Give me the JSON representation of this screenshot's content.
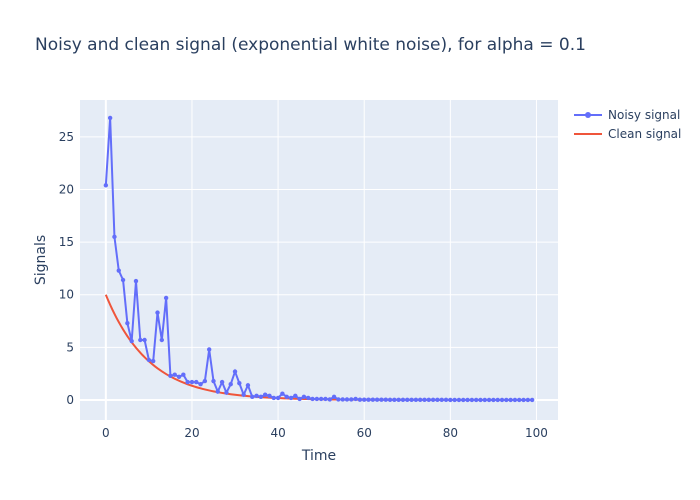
{
  "chart_data": {
    "type": "line",
    "title": "Noisy and clean signal (exponential white noise), for alpha = 0.1",
    "xlabel": "Time",
    "ylabel": "Signals",
    "xlim": [
      -6,
      105
    ],
    "ylim": [
      -1.9,
      28.5
    ],
    "xticks": [
      0,
      20,
      40,
      60,
      80,
      100
    ],
    "yticks": [
      0,
      5,
      10,
      15,
      20,
      25
    ],
    "grid": true,
    "legend_position": "top-right",
    "series": [
      {
        "name": "Noisy signal",
        "color": "#636efa",
        "mode": "lines+markers",
        "x": [
          0,
          1,
          2,
          3,
          4,
          5,
          6,
          7,
          8,
          9,
          10,
          11,
          12,
          13,
          14,
          15,
          16,
          17,
          18,
          19,
          20,
          21,
          22,
          23,
          24,
          25,
          26,
          27,
          28,
          29,
          30,
          31,
          32,
          33,
          34,
          35,
          36,
          37,
          38,
          39,
          40,
          41,
          42,
          43,
          44,
          45,
          46,
          47,
          48,
          49,
          50,
          51,
          52,
          53,
          54,
          55,
          56,
          57,
          58,
          59,
          60,
          61,
          62,
          63,
          64,
          65,
          66,
          67,
          68,
          69,
          70,
          71,
          72,
          73,
          74,
          75,
          76,
          77,
          78,
          79,
          80,
          81,
          82,
          83,
          84,
          85,
          86,
          87,
          88,
          89,
          90,
          91,
          92,
          93,
          94,
          95,
          96,
          97,
          98,
          99
        ],
        "y": [
          20.4,
          26.8,
          15.5,
          12.3,
          11.4,
          7.3,
          5.6,
          11.3,
          5.7,
          5.7,
          3.8,
          3.7,
          8.3,
          5.7,
          9.7,
          2.3,
          2.4,
          2.2,
          2.4,
          1.7,
          1.7,
          1.7,
          1.5,
          1.8,
          4.8,
          1.8,
          0.8,
          1.7,
          0.7,
          1.5,
          2.7,
          1.6,
          0.5,
          1.4,
          0.3,
          0.4,
          0.3,
          0.5,
          0.4,
          0.2,
          0.2,
          0.6,
          0.3,
          0.2,
          0.4,
          0.1,
          0.3,
          0.2,
          0.1,
          0.1,
          0.1,
          0.1,
          0.05,
          0.3,
          0.05,
          0.05,
          0.05,
          0.05,
          0.1,
          0.03,
          0.03,
          0.03,
          0.03,
          0.03,
          0.03,
          0.03,
          0.02,
          0.02,
          0.02,
          0.02,
          0.02,
          0.02,
          0.02,
          0.02,
          0.02,
          0.02,
          0.02,
          0.02,
          0.02,
          0.02,
          0.01,
          0.01,
          0.01,
          0.01,
          0.01,
          0.01,
          0.01,
          0.01,
          0.01,
          0.01,
          0.01,
          0.01,
          0.01,
          0.01,
          0.01,
          0.01,
          0.01,
          0.01,
          0.01,
          0.01
        ]
      },
      {
        "name": "Clean signal",
        "color": "#ef553b",
        "mode": "lines",
        "function": "10*exp(-0.1*t)",
        "x_range": [
          0,
          99
        ]
      }
    ]
  }
}
